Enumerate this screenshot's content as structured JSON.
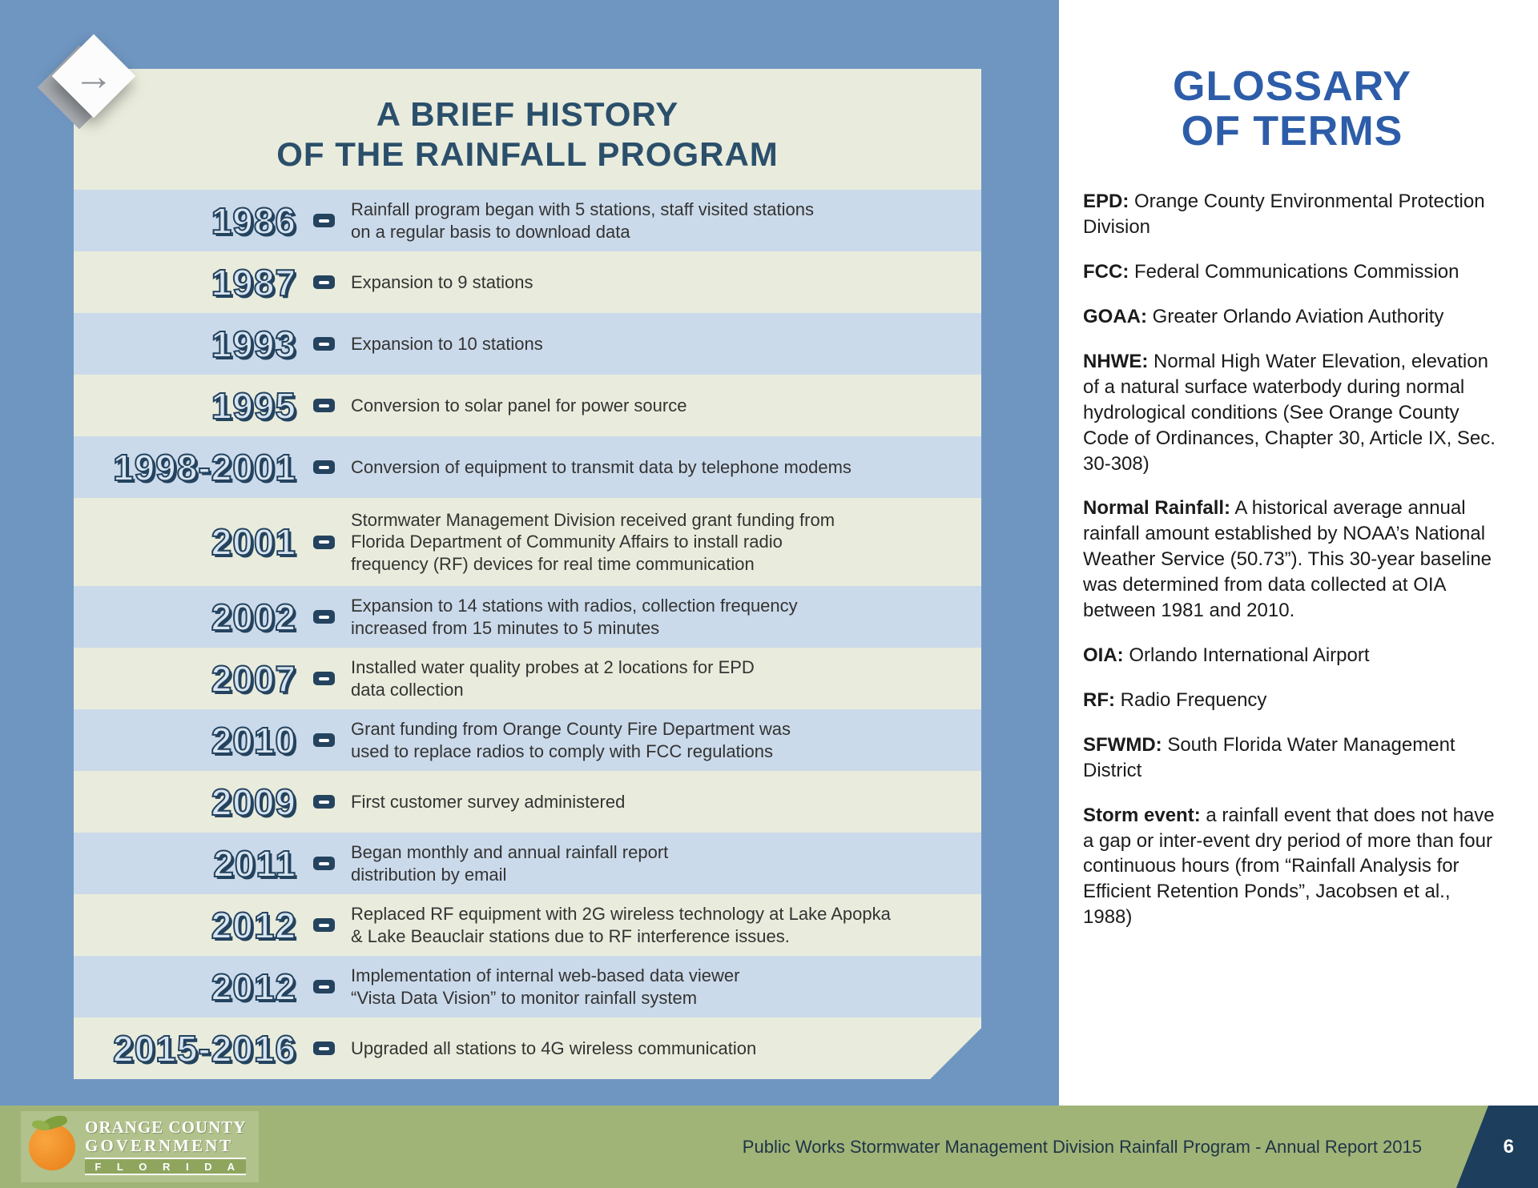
{
  "icons": {
    "arrow_right": "→"
  },
  "colors": {
    "background_blue": "#6f96c1",
    "row_blue": "#cbdaea",
    "row_beige": "#e9ecdc",
    "accent_navy": "#24435f",
    "timeline_title": "#2b4f6b",
    "glossary_title": "#2d5da9",
    "footer_green": "#a0b478",
    "page_corner_navy": "#1d3e5c"
  },
  "timeline": {
    "title_line1": "A BRIEF HISTORY",
    "title_line2": "OF THE RAINFALL PROGRAM",
    "entries": [
      {
        "year": "1986",
        "text": "Rainfall program began with 5 stations, staff visited stations\non a regular basis to download data"
      },
      {
        "year": "1987",
        "text": "Expansion to 9 stations"
      },
      {
        "year": "1993",
        "text": "Expansion to 10 stations"
      },
      {
        "year": "1995",
        "text": "Conversion to solar panel for power source"
      },
      {
        "year": "1998-2001",
        "text": "Conversion of equipment to transmit data by telephone modems"
      },
      {
        "year": "2001",
        "text": "Stormwater Management Division received grant funding from\nFlorida Department of Community Affairs to install radio\nfrequency (RF) devices for real time communication"
      },
      {
        "year": "2002",
        "text": "Expansion to 14 stations with radios, collection frequency\nincreased from 15 minutes to 5 minutes"
      },
      {
        "year": "2007",
        "text": "Installed water quality probes at 2 locations for EPD\ndata collection"
      },
      {
        "year": "2010",
        "text": "Grant funding from Orange County Fire Department was\nused to replace radios to comply with FCC regulations"
      },
      {
        "year": "2009",
        "text": "First customer survey administered"
      },
      {
        "year": "2011",
        "text": "Began monthly and annual rainfall report\ndistribution by email"
      },
      {
        "year": "2012",
        "text": "Replaced RF equipment with 2G wireless technology at Lake Apopka\n& Lake Beauclair stations due to RF interference issues."
      },
      {
        "year": "2012",
        "text": "Implementation of internal web-based data viewer\n“Vista Data Vision” to monitor rainfall system"
      },
      {
        "year": "2015-2016",
        "text": "Upgraded all stations to 4G wireless communication"
      }
    ]
  },
  "glossary": {
    "title_line1": "GLOSSARY",
    "title_line2": "OF TERMS",
    "terms": [
      {
        "term": "EPD:",
        "definition": "Orange County Environmental Protection Division"
      },
      {
        "term": "FCC:",
        "definition": "Federal Communications Commission"
      },
      {
        "term": "GOAA:",
        "definition": "Greater Orlando Aviation Authority"
      },
      {
        "term": "NHWE:",
        "definition": "Normal High Water Elevation, elevation of a natural surface waterbody during normal hydrological conditions (See Orange County Code of Ordinances, Chapter 30, Article IX, Sec. 30-308)"
      },
      {
        "term": "Normal Rainfall:",
        "definition": "A historical average annual rainfall amount established by NOAA’s National Weather Service (50.73”). This 30-year baseline was determined from data collected at OIA between 1981 and 2010."
      },
      {
        "term": "OIA:",
        "definition": "Orlando International Airport"
      },
      {
        "term": "RF:",
        "definition": "Radio Frequency"
      },
      {
        "term": "SFWMD:",
        "definition": "South Florida Water Management District"
      },
      {
        "term": "Storm event:",
        "definition": "a rainfall event that does not have a gap or inter-event dry period of more than four continuous hours (from “Rainfall Analysis for Efficient Retention Ponds”, Jacobsen et al., 1988)"
      }
    ]
  },
  "footer": {
    "caption": "Public Works Stormwater Management Division Rainfall Program - Annual Report 2015",
    "page_number": "6"
  },
  "logo": {
    "line1": "ORANGE COUNTY",
    "line2": "GOVERNMENT",
    "line3": "F L O R I D A"
  }
}
